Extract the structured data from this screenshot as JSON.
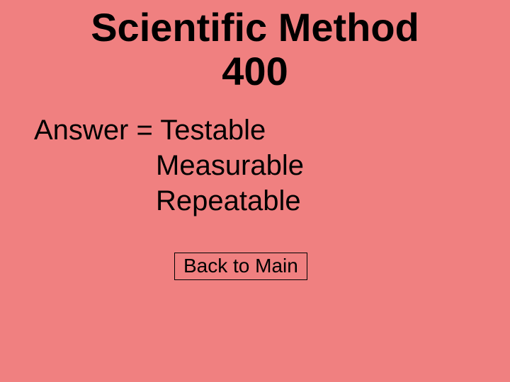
{
  "colors": {
    "background": "#f08080",
    "text": "#000000",
    "button_border": "#000000"
  },
  "typography": {
    "title_fontsize": 56,
    "title_weight": "bold",
    "body_fontsize": 40,
    "button_fontsize": 28,
    "font_family": "Arial, sans-serif"
  },
  "title": {
    "line1": "Scientific Method",
    "line2": "400"
  },
  "answer": {
    "prefix": "Answer = ",
    "items": [
      "Testable",
      "Measurable",
      "Repeatable"
    ]
  },
  "button": {
    "label": "Back to Main"
  }
}
